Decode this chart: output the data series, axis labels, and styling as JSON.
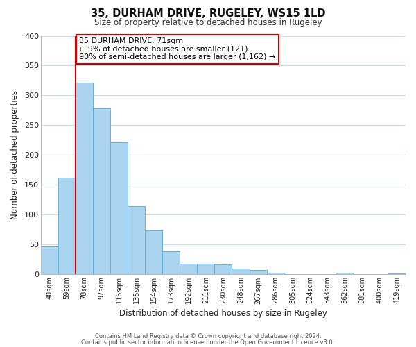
{
  "title": "35, DURHAM DRIVE, RUGELEY, WS15 1LD",
  "subtitle": "Size of property relative to detached houses in Rugeley",
  "xlabel": "Distribution of detached houses by size in Rugeley",
  "ylabel": "Number of detached properties",
  "bar_labels": [
    "40sqm",
    "59sqm",
    "78sqm",
    "97sqm",
    "116sqm",
    "135sqm",
    "154sqm",
    "173sqm",
    "192sqm",
    "211sqm",
    "230sqm",
    "248sqm",
    "267sqm",
    "286sqm",
    "305sqm",
    "324sqm",
    "343sqm",
    "362sqm",
    "381sqm",
    "400sqm",
    "419sqm"
  ],
  "bar_values": [
    47,
    162,
    321,
    278,
    221,
    115,
    74,
    39,
    18,
    18,
    17,
    10,
    7,
    3,
    0,
    0,
    0,
    3,
    0,
    0,
    2
  ],
  "bar_color": "#aad4f0",
  "bar_edge_color": "#6ab0d8",
  "highlight_color": "#cc0000",
  "annotation_title": "35 DURHAM DRIVE: 71sqm",
  "annotation_line1": "← 9% of detached houses are smaller (121)",
  "annotation_line2": "90% of semi-detached houses are larger (1,162) →",
  "annotation_box_color": "#ffffff",
  "annotation_box_edge_color": "#cc0000",
  "ylim": [
    0,
    400
  ],
  "yticks": [
    0,
    50,
    100,
    150,
    200,
    250,
    300,
    350,
    400
  ],
  "footer1": "Contains HM Land Registry data © Crown copyright and database right 2024.",
  "footer2": "Contains public sector information licensed under the Open Government Licence v3.0.",
  "background_color": "#ffffff",
  "grid_color": "#d0dce8"
}
